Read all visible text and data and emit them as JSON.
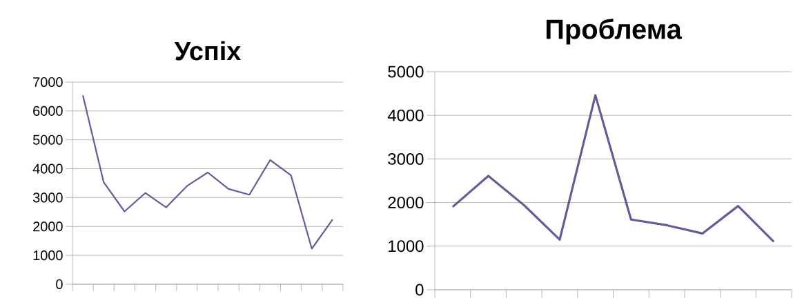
{
  "chart_data": [
    {
      "type": "line",
      "title": "Успіх",
      "categories": [
        null,
        null,
        null,
        null,
        null,
        null,
        null,
        null,
        null,
        null,
        null,
        null,
        null
      ],
      "values": [
        6540,
        3530,
        2520,
        3160,
        2660,
        3400,
        3870,
        3300,
        3100,
        4300,
        3770,
        1230,
        2240
      ],
      "color": "#5e5e98",
      "ylim": [
        0,
        7000
      ],
      "yticks": [
        0,
        1000,
        2000,
        3000,
        4000,
        5000,
        6000,
        7000
      ],
      "grid": "y",
      "tick_labels": "y"
    },
    {
      "type": "line",
      "title": "Проблема",
      "categories": [
        null,
        null,
        null,
        null,
        null,
        null,
        null,
        null,
        null,
        null
      ],
      "values": [
        1900,
        2610,
        1940,
        1150,
        4460,
        1610,
        1480,
        1290,
        1920,
        1100
      ],
      "color": "#5e5e98",
      "ylim": [
        0,
        5000
      ],
      "yticks": [
        0,
        1000,
        2000,
        3000,
        4000,
        5000
      ],
      "grid": "y",
      "tick_labels": "y"
    }
  ]
}
